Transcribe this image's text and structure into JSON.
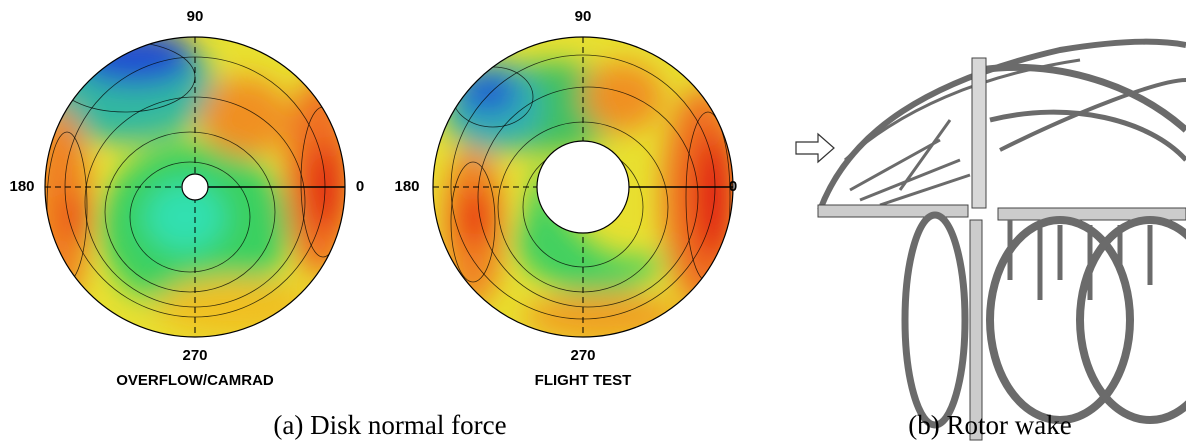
{
  "panel_a": {
    "plots": [
      {
        "angle_labels": {
          "top": "90",
          "left": "180",
          "right": "0",
          "bottom": "270"
        },
        "label": "OVERFLOW/CAMRAD"
      },
      {
        "angle_labels": {
          "top": "90",
          "left": "180",
          "right": "0",
          "bottom": "270"
        },
        "label": "FLIGHT TEST"
      }
    ],
    "caption": "(a) Disk normal force"
  },
  "panel_b": {
    "caption": "(b) Rotor wake"
  }
}
